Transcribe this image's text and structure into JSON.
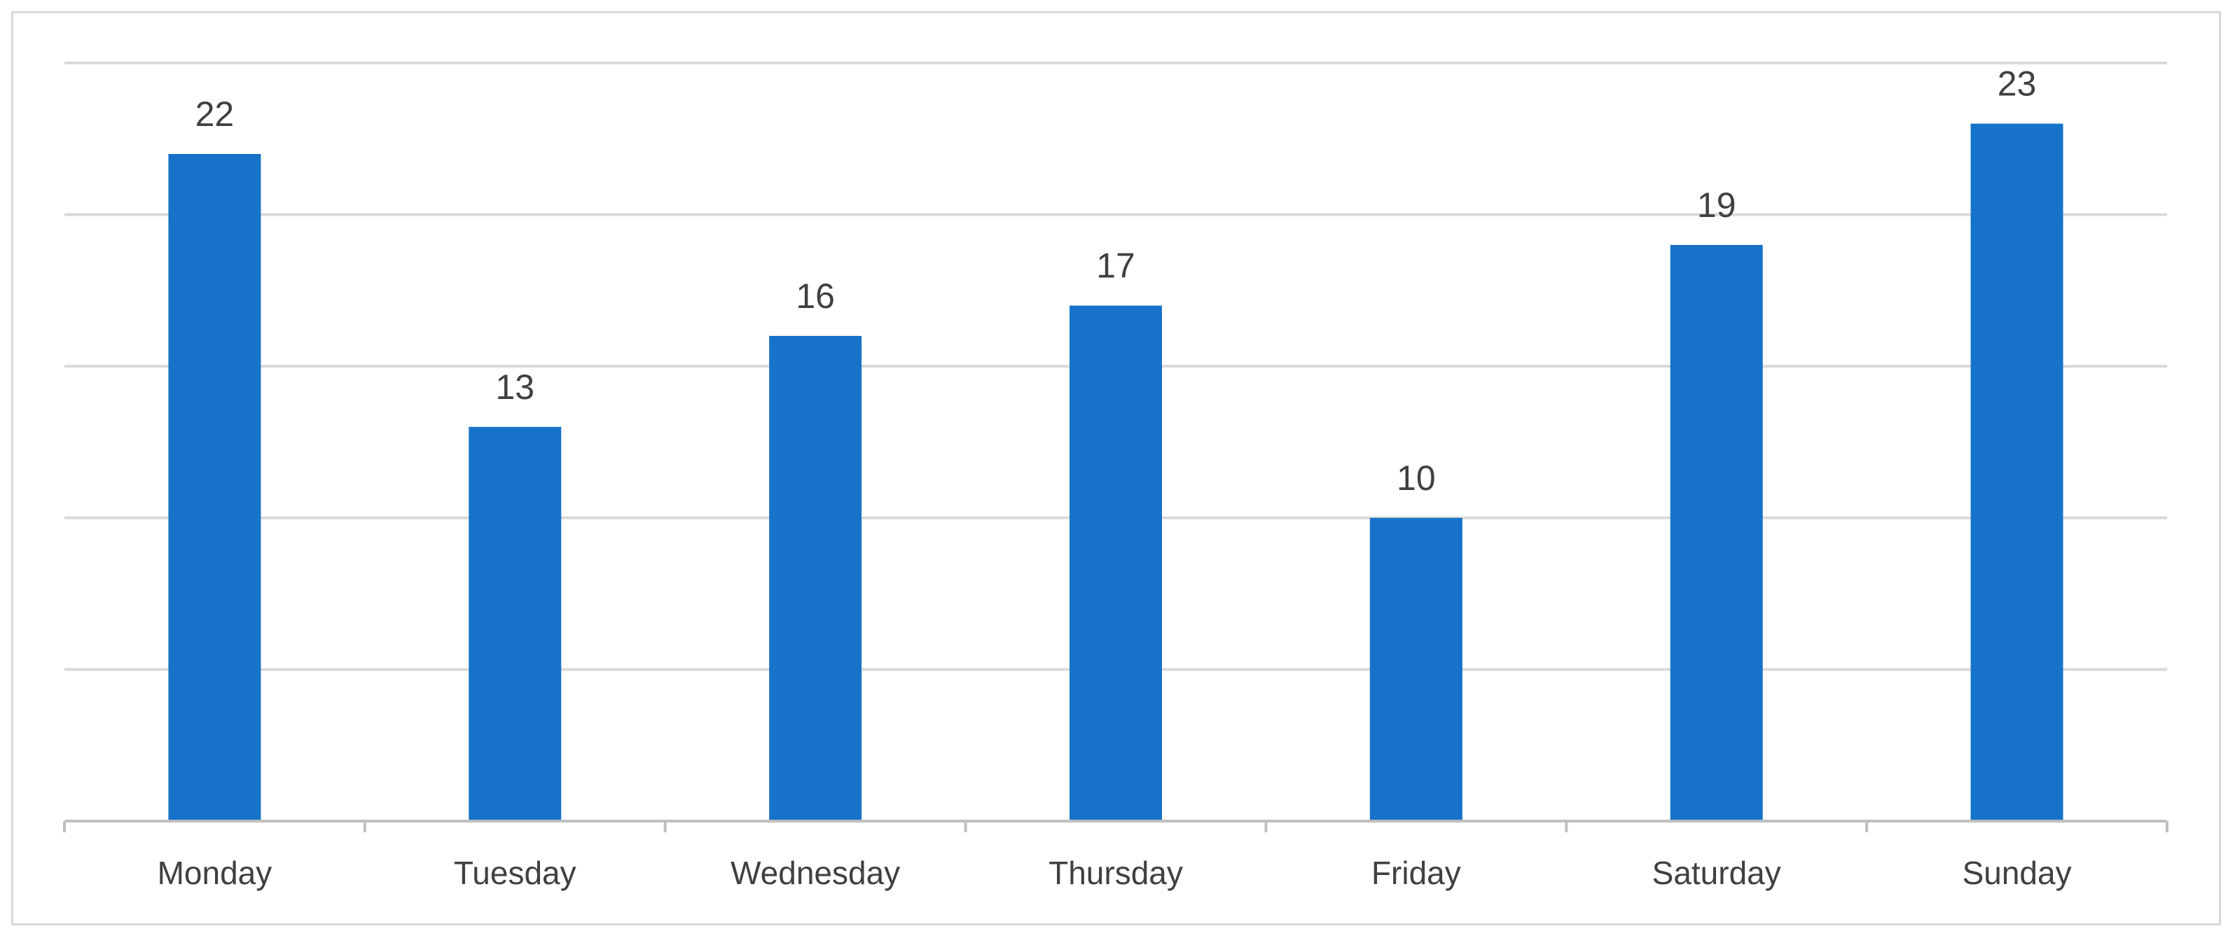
{
  "chart_data": {
    "type": "bar",
    "categories": [
      "Monday",
      "Tuesday",
      "Wednesday",
      "Thursday",
      "Friday",
      "Saturday",
      "Sunday"
    ],
    "values": [
      22,
      13,
      16,
      17,
      10,
      19,
      23
    ],
    "title": "",
    "xlabel": "",
    "ylabel": "",
    "ylim": [
      0,
      25
    ],
    "grid": true,
    "gridline_step": 5,
    "y_tick_labels_shown": false,
    "data_labels_shown": true,
    "legend": "none",
    "colors": {
      "bar": "#1773c9"
    }
  }
}
